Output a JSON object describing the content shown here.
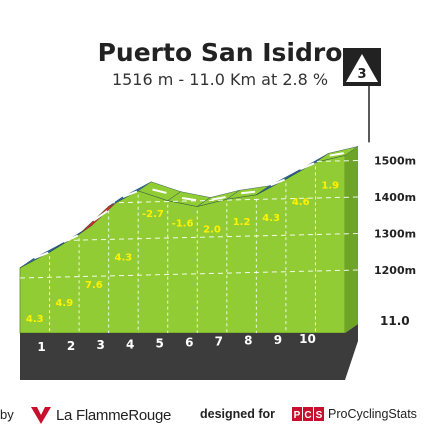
{
  "climb": {
    "name": "Puerto San Isidro",
    "summary": "1516 m - 11.0 Km at 2.8 %",
    "category": "3"
  },
  "footer": {
    "by_label": "by",
    "brand": "La FlammeRouge",
    "designed_for": "designed for",
    "pcs_logo_text": "PCS",
    "pcs_name": "ProCyclingStats"
  },
  "colors": {
    "fill_green": "#92cc35",
    "stripe_blue": "#2f6a9e",
    "stripe_red": "#d62a2a",
    "base": "#3c3c3c",
    "ground": "#a39b91",
    "gradient_label": "#fff200",
    "brand_red": "#c8102e"
  },
  "chart_data": {
    "type": "area",
    "title": "Puerto San Isidro",
    "subtitle": "1516 m - 11.0 Km at 2.8 %",
    "x_unit": "km",
    "y_unit": "m",
    "xlim": [
      0,
      11
    ],
    "ylim": [
      1100,
      1530
    ],
    "y_ticks": [
      {
        "label": "1500m",
        "value": 1500
      },
      {
        "label": "1400m",
        "value": 1400
      },
      {
        "label": "1300m",
        "value": 1300
      },
      {
        "label": "1200m",
        "value": 1200
      }
    ],
    "final_km_label": "11.0",
    "km_markers": [
      "1",
      "2",
      "3",
      "4",
      "5",
      "6",
      "7",
      "8",
      "9",
      "10"
    ],
    "profile": [
      {
        "km": 0,
        "alt": 1206
      },
      {
        "km": 1,
        "alt": 1249
      },
      {
        "km": 2,
        "alt": 1298
      },
      {
        "km": 3,
        "alt": 1374
      },
      {
        "km": 4,
        "alt": 1417
      },
      {
        "km": 5,
        "alt": 1390
      },
      {
        "km": 6,
        "alt": 1374
      },
      {
        "km": 7,
        "alt": 1394
      },
      {
        "km": 8,
        "alt": 1406
      },
      {
        "km": 9,
        "alt": 1449
      },
      {
        "km": 10,
        "alt": 1495
      },
      {
        "km": 11,
        "alt": 1514
      }
    ],
    "segments": [
      {
        "gradient": "4.3",
        "color": "blue"
      },
      {
        "gradient": "4.9",
        "color": "blue"
      },
      {
        "gradient": "7.6",
        "color": "red"
      },
      {
        "gradient": "4.3",
        "color": "blue"
      },
      {
        "gradient": "-2.7",
        "color": "green"
      },
      {
        "gradient": "-1.6",
        "color": "green"
      },
      {
        "gradient": "2.0",
        "color": "green"
      },
      {
        "gradient": "1.2",
        "color": "green"
      },
      {
        "gradient": "4.3",
        "color": "blue"
      },
      {
        "gradient": "4.6",
        "color": "blue"
      },
      {
        "gradient": "1.9",
        "color": "green"
      }
    ]
  }
}
